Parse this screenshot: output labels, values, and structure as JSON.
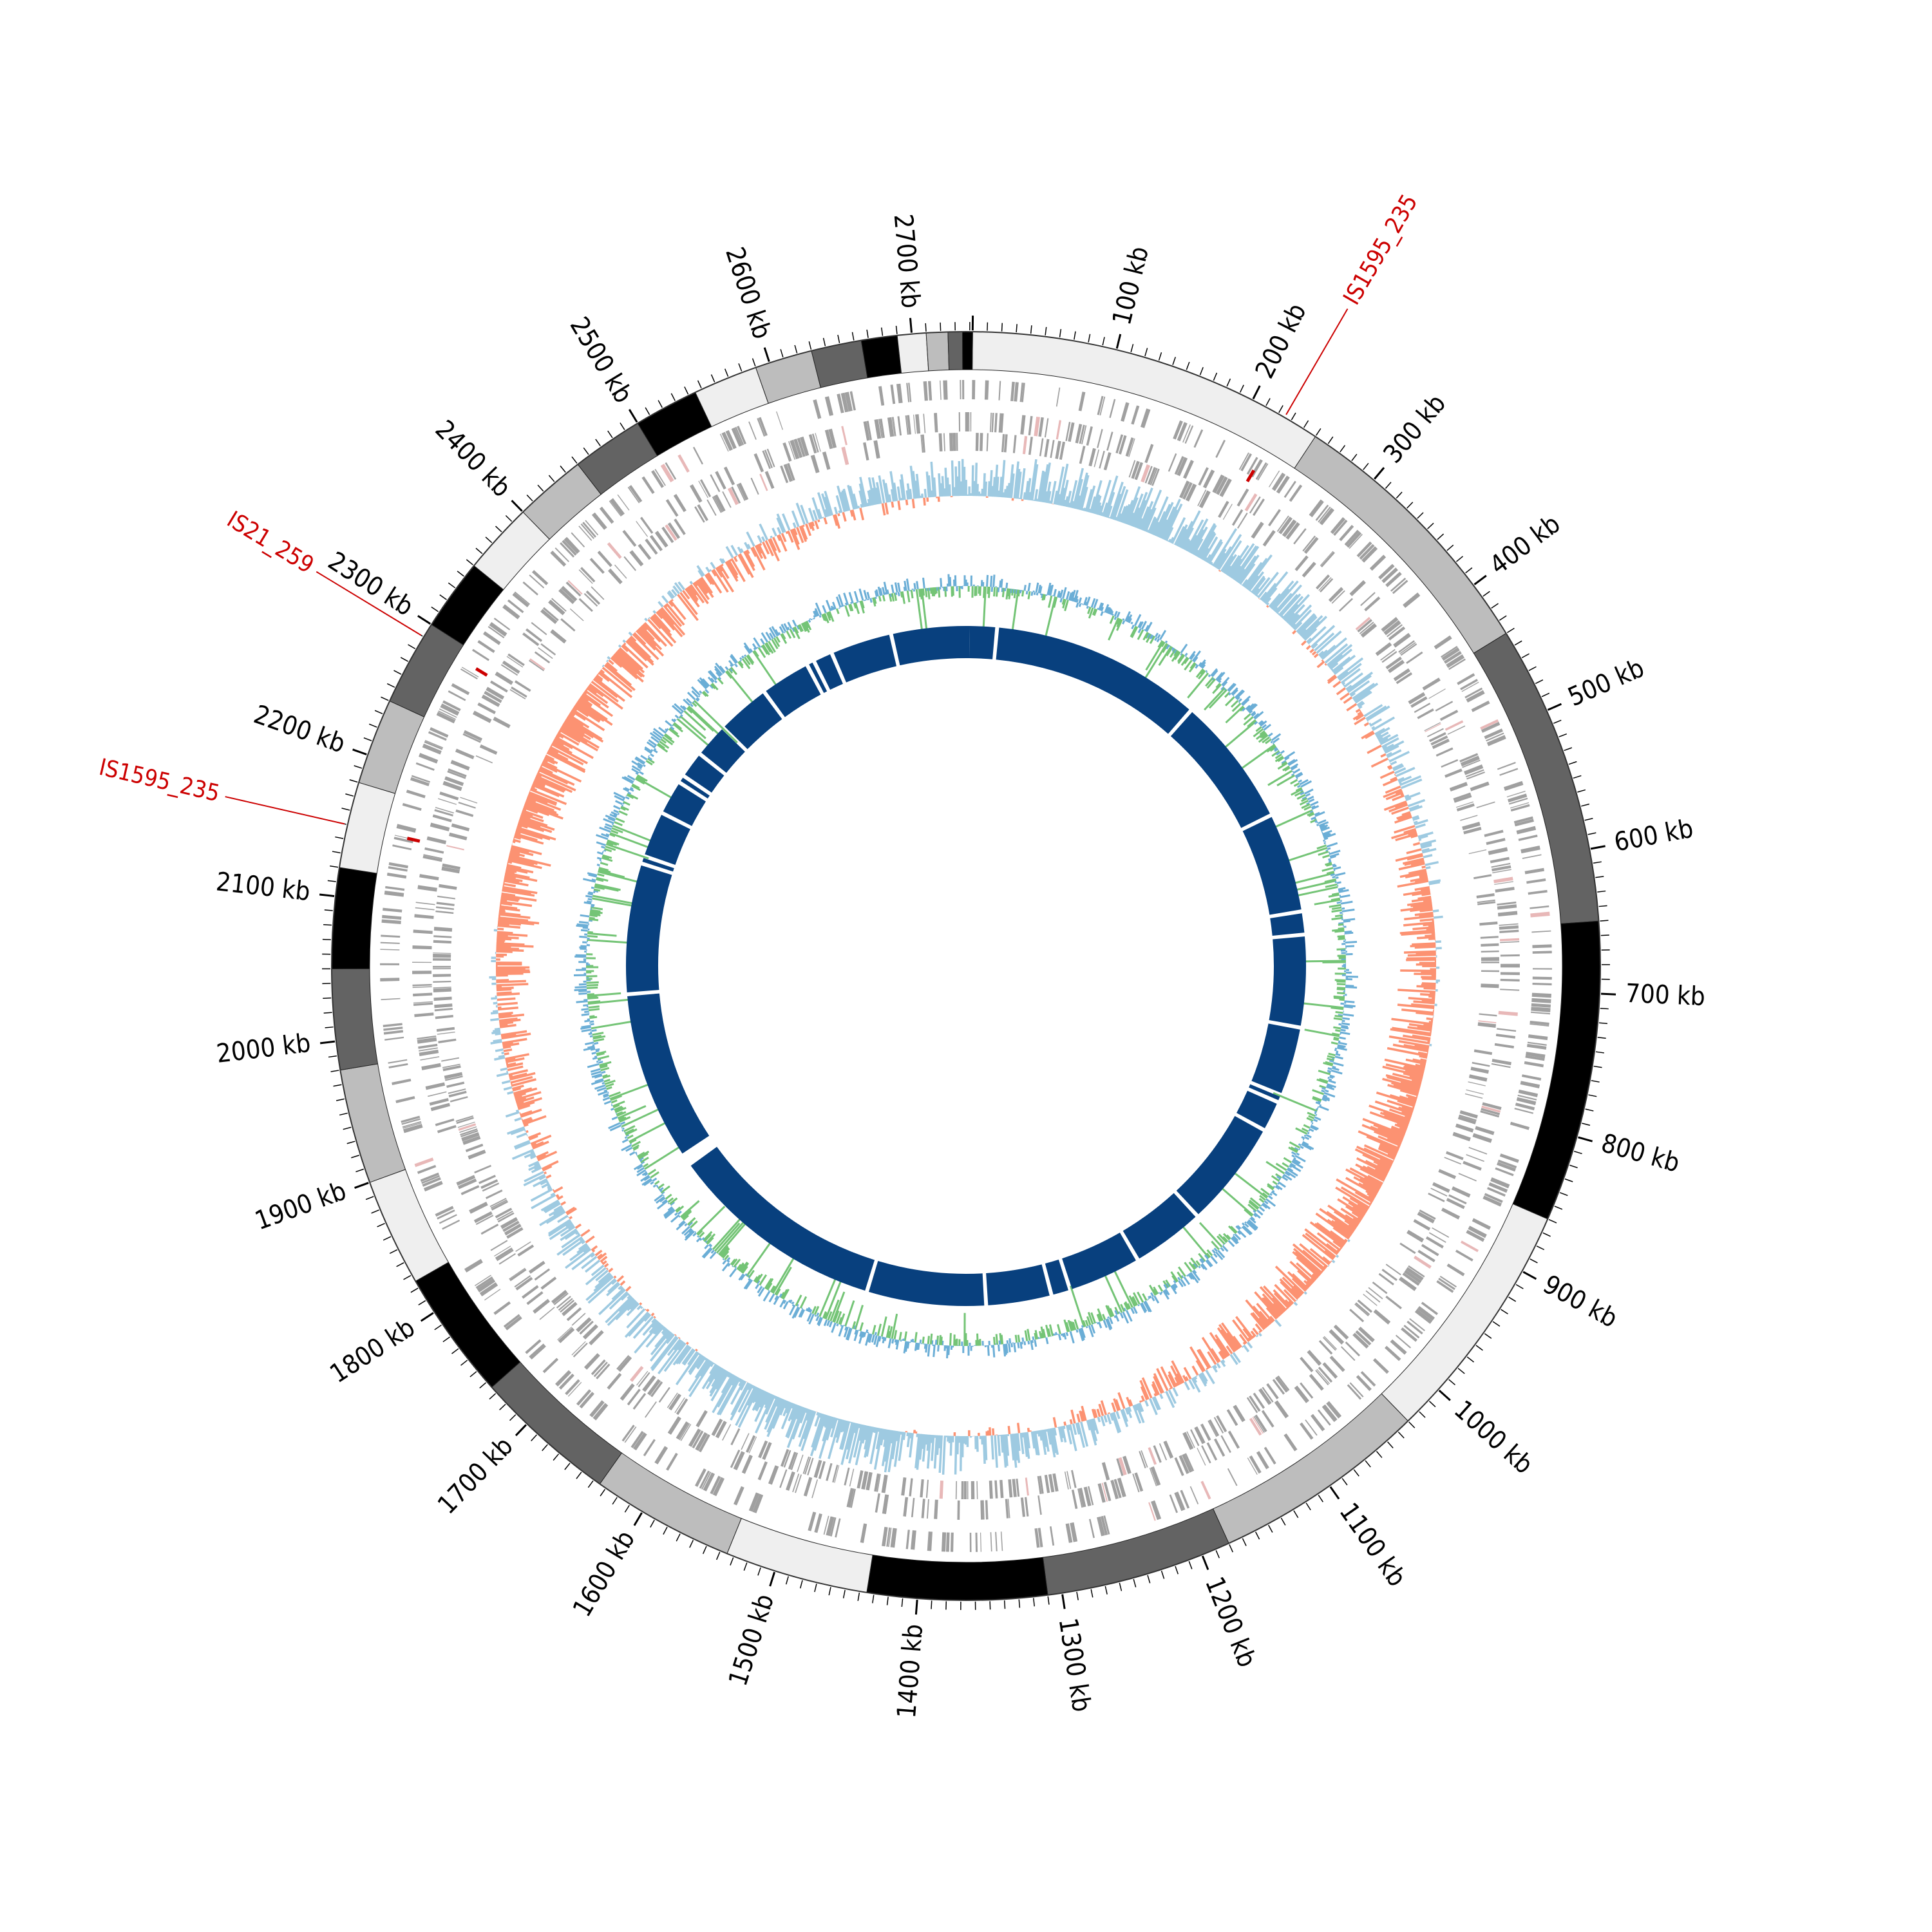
{
  "genome": {
    "length_kb": 2742,
    "ticks": [
      {
        "kb": 100,
        "label": "100 kb"
      },
      {
        "kb": 200,
        "label": "200 kb"
      },
      {
        "kb": 300,
        "label": "300 kb"
      },
      {
        "kb": 400,
        "label": "400 kb"
      },
      {
        "kb": 500,
        "label": "500 kb"
      },
      {
        "kb": 600,
        "label": "600 kb"
      },
      {
        "kb": 700,
        "label": "700 kb"
      },
      {
        "kb": 800,
        "label": "800 kb"
      },
      {
        "kb": 900,
        "label": "900 kb"
      },
      {
        "kb": 1000,
        "label": "1000 kb"
      },
      {
        "kb": 1100,
        "label": "1100 kb"
      },
      {
        "kb": 1200,
        "label": "1200 kb"
      },
      {
        "kb": 1300,
        "label": "1300 kb"
      },
      {
        "kb": 1400,
        "label": "1400 kb"
      },
      {
        "kb": 1500,
        "label": "1500 kb"
      },
      {
        "kb": 1600,
        "label": "1600 kb"
      },
      {
        "kb": 1700,
        "label": "1700 kb"
      },
      {
        "kb": 1800,
        "label": "1800 kb"
      },
      {
        "kb": 1900,
        "label": "1900 kb"
      },
      {
        "kb": 2000,
        "label": "2000 kb"
      },
      {
        "kb": 2100,
        "label": "2100 kb"
      },
      {
        "kb": 2200,
        "label": "2200 kb"
      },
      {
        "kb": 2300,
        "label": "2300 kb"
      },
      {
        "kb": 2400,
        "label": "2400 kb"
      },
      {
        "kb": 2500,
        "label": "2500 kb"
      },
      {
        "kb": 2600,
        "label": "2600 kb"
      },
      {
        "kb": 2700,
        "label": "2700 kb"
      }
    ],
    "contig_blocks": [
      {
        "start": 0,
        "end": 250,
        "color": "#efefef"
      },
      {
        "start": 250,
        "end": 440,
        "color": "#bdbdbd"
      },
      {
        "start": 440,
        "end": 650,
        "color": "#636363"
      },
      {
        "start": 650,
        "end": 860,
        "color": "#000000"
      },
      {
        "start": 860,
        "end": 1030,
        "color": "#efefef"
      },
      {
        "start": 1030,
        "end": 1180,
        "color": "#bdbdbd"
      },
      {
        "start": 1180,
        "end": 1310,
        "color": "#636363"
      },
      {
        "start": 1310,
        "end": 1435,
        "color": "#000000"
      },
      {
        "start": 1435,
        "end": 1535,
        "color": "#efefef"
      },
      {
        "start": 1535,
        "end": 1635,
        "color": "#bdbdbd"
      },
      {
        "start": 1635,
        "end": 1735,
        "color": "#636363"
      },
      {
        "start": 1735,
        "end": 1825,
        "color": "#000000"
      },
      {
        "start": 1825,
        "end": 1900,
        "color": "#efefef"
      },
      {
        "start": 1900,
        "end": 1980,
        "color": "#bdbdbd"
      },
      {
        "start": 1980,
        "end": 2050,
        "color": "#636363"
      },
      {
        "start": 2050,
        "end": 2120,
        "color": "#000000"
      },
      {
        "start": 2120,
        "end": 2180,
        "color": "#efefef"
      },
      {
        "start": 2180,
        "end": 2240,
        "color": "#bdbdbd"
      },
      {
        "start": 2240,
        "end": 2300,
        "color": "#636363"
      },
      {
        "start": 2300,
        "end": 2350,
        "color": "#000000"
      },
      {
        "start": 2350,
        "end": 2400,
        "color": "#efefef"
      },
      {
        "start": 2400,
        "end": 2450,
        "color": "#bdbdbd"
      },
      {
        "start": 2450,
        "end": 2500,
        "color": "#636363"
      },
      {
        "start": 2500,
        "end": 2545,
        "color": "#000000"
      },
      {
        "start": 2545,
        "end": 2590,
        "color": "#efefef"
      },
      {
        "start": 2590,
        "end": 2630,
        "color": "#bdbdbd"
      },
      {
        "start": 2630,
        "end": 2665,
        "color": "#636363"
      },
      {
        "start": 2665,
        "end": 2690,
        "color": "#000000"
      },
      {
        "start": 2690,
        "end": 2710,
        "color": "#efefef"
      },
      {
        "start": 2710,
        "end": 2725,
        "color": "#bdbdbd"
      },
      {
        "start": 2725,
        "end": 2735,
        "color": "#636363"
      },
      {
        "start": 2735,
        "end": 2742,
        "color": "#000000"
      }
    ],
    "is_elements": [
      {
        "label": "IS1595_235",
        "kb": 225,
        "color": "#cc0000"
      },
      {
        "label": "IS21_259",
        "kb": 2290,
        "color": "#cc0000"
      },
      {
        "label": "IS1595_235",
        "kb": 2150,
        "color": "#cc0000"
      }
    ],
    "colors": {
      "gene_gray": "#a0a0a0",
      "gene_highlight": "#e8b8b8",
      "gc_skew_positive": "#9ecae1",
      "gc_skew_negative": "#fc9272",
      "gc_content_blue": "#6baed6",
      "gc_content_green": "#74c476",
      "alignment_blue": "#08407e"
    },
    "alignment_gaps_kb": [
      35,
      310,
      480,
      610,
      640,
      760,
      850,
      860,
      900,
      1040,
      1135,
      1230,
      1255,
      1340,
      1495,
      1780,
      1785,
      2015,
      2185,
      2195,
      2255,
      2300,
      2310,
      2345,
      2390,
      2460,
      2525,
      2535,
      2560,
      2640
    ]
  }
}
